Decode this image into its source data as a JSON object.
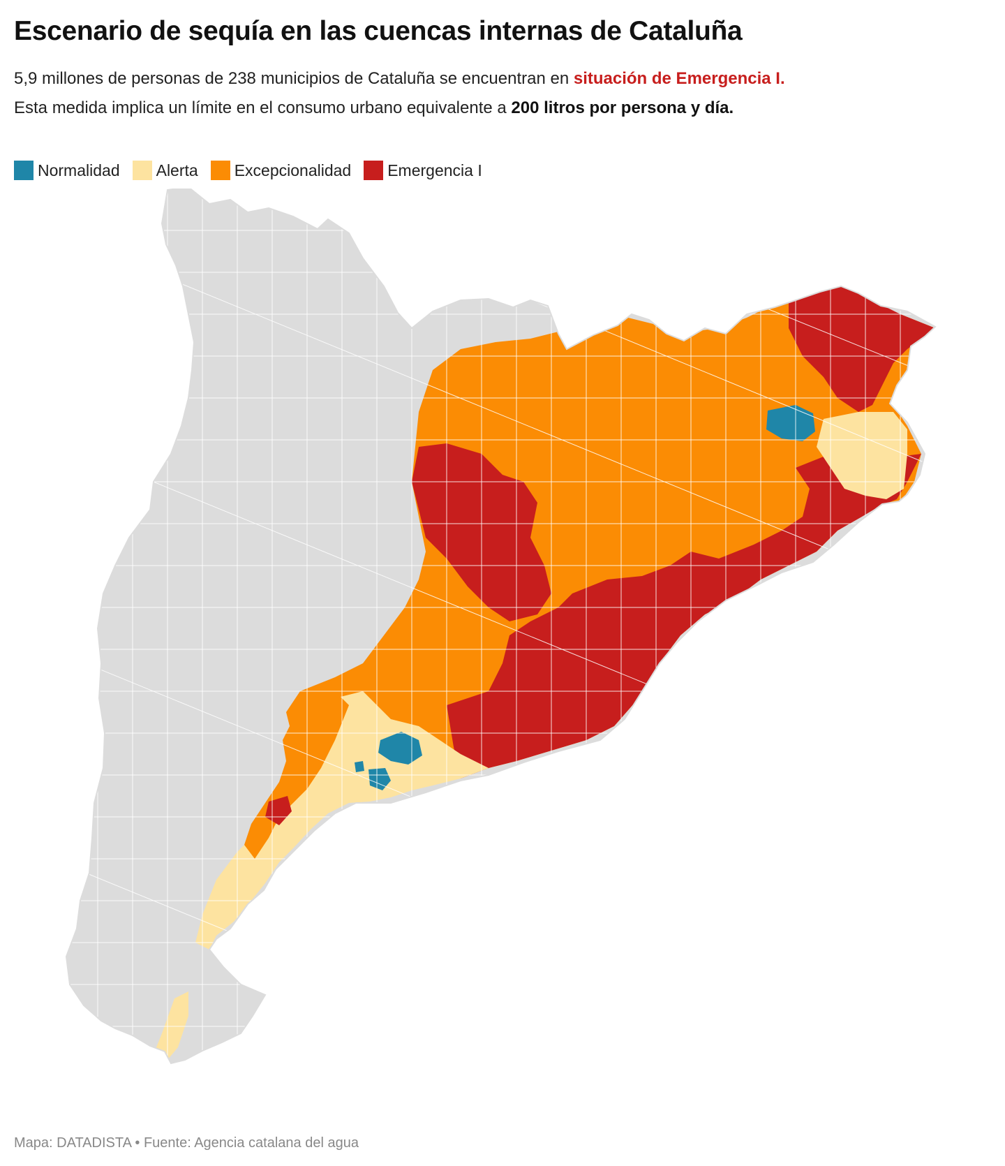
{
  "title": "Escenario de sequía en las cuencas internas de Cataluña",
  "subtitle": {
    "line1_pre": "5,9 millones de personas de 238 municipios de Cataluña se encuentran en ",
    "line1_highlight": "situación de Emergencia I.",
    "line2_pre": "Esta medida implica un límite en el consumo urbano equivalente a ",
    "line2_bold": "200 litros por persona y día."
  },
  "legend": [
    {
      "label": "Normalidad",
      "color": "#1f86a8"
    },
    {
      "label": "Alerta",
      "color": "#fde3a0"
    },
    {
      "label": "Excepcionalidad",
      "color": "#fb8c04"
    },
    {
      "label": "Emergencia I",
      "color": "#c71e1d"
    }
  ],
  "colors": {
    "no_data": "#dcdcdc",
    "boundary": "#ffffff",
    "highlight_text": "#c71e1d"
  },
  "footer": "Mapa: DATADISTA • Fuente: Agencia catalana del agua"
}
